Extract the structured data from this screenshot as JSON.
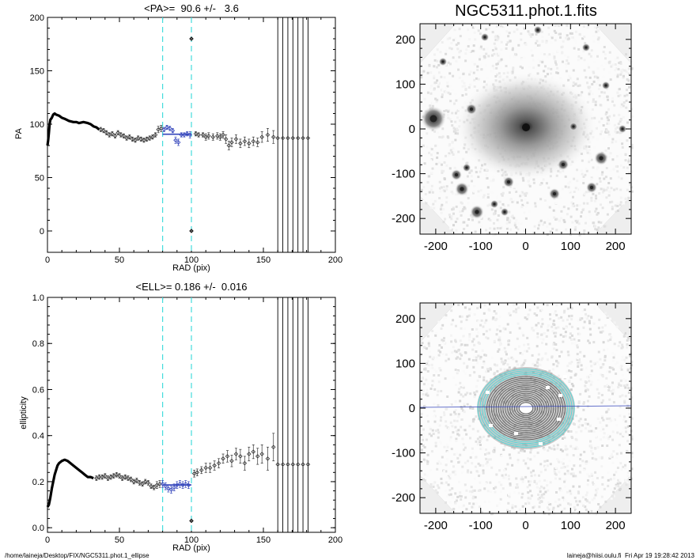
{
  "figure": {
    "title": "NGC5311.phot.1.fits",
    "footer_left": "/home/laineja/Desktop/FIX/NGC5311.phot.1_ellipse",
    "footer_right": "laineja@hiisi.oulu.fi  Fri Apr 19 19:28:42 2013"
  },
  "colors": {
    "axes": "#000000",
    "points": "#333333",
    "dashed_lines": "#44dddd",
    "fit_highlight": "#3344bb",
    "image_background": "#eeeeee"
  },
  "chart_data": [
    {
      "id": "pa",
      "type": "scatter",
      "title": "<PA>=  90.6 +/-   3.6",
      "xlabel": "RAD (pix)",
      "ylabel": "PA",
      "xlim": [
        0,
        200
      ],
      "ylim": [
        -20,
        200
      ],
      "xticks": [
        0,
        50,
        100,
        150,
        200
      ],
      "yticks": [
        0,
        50,
        100,
        150,
        200
      ],
      "mean": 90.6,
      "fit_range": [
        80,
        100
      ],
      "vlines_dashed": [
        80,
        100
      ],
      "vlines_solid": [
        160,
        163.5,
        167,
        170.5,
        174,
        177.5,
        181
      ],
      "outliers": [
        {
          "x": 100,
          "y": 180
        },
        {
          "x": 100,
          "y": 0
        }
      ],
      "curve": [
        [
          0,
          80
        ],
        [
          0.5,
          85
        ],
        [
          1,
          92
        ],
        [
          1.5,
          100
        ],
        [
          2,
          104
        ],
        [
          3,
          106
        ],
        [
          4,
          109
        ],
        [
          5,
          110
        ],
        [
          6,
          109
        ],
        [
          8,
          108
        ],
        [
          10,
          106
        ],
        [
          12,
          105
        ],
        [
          15,
          103
        ],
        [
          18,
          102
        ],
        [
          20,
          102
        ],
        [
          22,
          101
        ],
        [
          25,
          102
        ],
        [
          28,
          101
        ],
        [
          30,
          100
        ],
        [
          32,
          98
        ],
        [
          34,
          97
        ],
        [
          36,
          95
        ]
      ],
      "points": [
        [
          37,
          95,
          2
        ],
        [
          39,
          94,
          2
        ],
        [
          41,
          92,
          2
        ],
        [
          43,
          90,
          2
        ],
        [
          45,
          91,
          2
        ],
        [
          47,
          89,
          2
        ],
        [
          49,
          92,
          2
        ],
        [
          51,
          90,
          2
        ],
        [
          53,
          89,
          2
        ],
        [
          55,
          87,
          2
        ],
        [
          57,
          88,
          2
        ],
        [
          59,
          86,
          2
        ],
        [
          61,
          85,
          2
        ],
        [
          63,
          87,
          2
        ],
        [
          65,
          86,
          2
        ],
        [
          67,
          85,
          2
        ],
        [
          69,
          86,
          2
        ],
        [
          71,
          87,
          2
        ],
        [
          73,
          88,
          2
        ],
        [
          75,
          90,
          2
        ],
        [
          77,
          95,
          3
        ],
        [
          79,
          96,
          3
        ],
        [
          81,
          95,
          2
        ],
        [
          83,
          97,
          2
        ],
        [
          85,
          96,
          2
        ],
        [
          87,
          94,
          2
        ],
        [
          89,
          85,
          3
        ],
        [
          91,
          83,
          3
        ],
        [
          93,
          90,
          2
        ],
        [
          95,
          90,
          2
        ],
        [
          97,
          91,
          2
        ],
        [
          99,
          90,
          3
        ],
        [
          103,
          91,
          2
        ],
        [
          105,
          90,
          2
        ],
        [
          108,
          90,
          2
        ],
        [
          110,
          88,
          3
        ],
        [
          112,
          89,
          3
        ],
        [
          115,
          88,
          3
        ],
        [
          118,
          89,
          3
        ],
        [
          120,
          88,
          3
        ],
        [
          122,
          90,
          3
        ],
        [
          124,
          86,
          4
        ],
        [
          126,
          80,
          4
        ],
        [
          128,
          83,
          4
        ],
        [
          131,
          86,
          4
        ],
        [
          134,
          82,
          4
        ],
        [
          137,
          84,
          4
        ],
        [
          140,
          82,
          4
        ],
        [
          143,
          84,
          4
        ],
        [
          146,
          83,
          4
        ],
        [
          149,
          88,
          5
        ],
        [
          153,
          90,
          6
        ],
        [
          157,
          88,
          6
        ],
        [
          160,
          87,
          0
        ],
        [
          163.5,
          87,
          0
        ],
        [
          167,
          87,
          0
        ],
        [
          170.5,
          87,
          0
        ],
        [
          174,
          87,
          0
        ],
        [
          177.5,
          87,
          0
        ],
        [
          181,
          87,
          0
        ]
      ]
    },
    {
      "id": "ell",
      "type": "scatter",
      "title": "<ELL>= 0.186 +/-  0.016",
      "xlabel": "RAD (pix)",
      "ylabel": "ellipticity",
      "xlim": [
        0,
        200
      ],
      "ylim": [
        -0.02,
        1.0
      ],
      "xticks": [
        0,
        50,
        100,
        150,
        200
      ],
      "yticks": [
        0.0,
        0.2,
        0.4,
        0.6,
        0.8,
        1.0
      ],
      "mean": 0.186,
      "fit_range": [
        80,
        100
      ],
      "vlines_dashed": [
        80,
        100
      ],
      "vlines_solid": [
        160,
        163.5,
        167,
        170.5,
        174,
        177.5,
        181
      ],
      "outliers": [
        {
          "x": 100,
          "y": 0.03
        }
      ],
      "curve": [
        [
          0,
          0.09
        ],
        [
          1,
          0.1
        ],
        [
          2,
          0.13
        ],
        [
          3,
          0.17
        ],
        [
          4,
          0.2
        ],
        [
          5,
          0.23
        ],
        [
          6,
          0.25
        ],
        [
          7,
          0.27
        ],
        [
          8,
          0.28
        ],
        [
          10,
          0.29
        ],
        [
          12,
          0.295
        ],
        [
          14,
          0.29
        ],
        [
          16,
          0.28
        ],
        [
          18,
          0.27
        ],
        [
          20,
          0.26
        ],
        [
          22,
          0.25
        ],
        [
          24,
          0.24
        ],
        [
          26,
          0.23
        ],
        [
          28,
          0.22
        ],
        [
          30,
          0.22
        ],
        [
          32,
          0.215
        ]
      ],
      "points": [
        [
          34,
          0.215,
          0.01
        ],
        [
          36,
          0.22,
          0.01
        ],
        [
          38,
          0.22,
          0.01
        ],
        [
          40,
          0.225,
          0.01
        ],
        [
          42,
          0.215,
          0.01
        ],
        [
          44,
          0.22,
          0.01
        ],
        [
          46,
          0.225,
          0.01
        ],
        [
          48,
          0.23,
          0.01
        ],
        [
          50,
          0.225,
          0.01
        ],
        [
          52,
          0.215,
          0.01
        ],
        [
          54,
          0.22,
          0.01
        ],
        [
          56,
          0.215,
          0.01
        ],
        [
          58,
          0.21,
          0.01
        ],
        [
          60,
          0.2,
          0.01
        ],
        [
          62,
          0.205,
          0.01
        ],
        [
          64,
          0.195,
          0.01
        ],
        [
          66,
          0.19,
          0.01
        ],
        [
          68,
          0.2,
          0.01
        ],
        [
          70,
          0.195,
          0.01
        ],
        [
          72,
          0.18,
          0.01
        ],
        [
          74,
          0.175,
          0.01
        ],
        [
          76,
          0.185,
          0.015
        ],
        [
          78,
          0.19,
          0.015
        ],
        [
          80,
          0.19,
          0.015
        ],
        [
          82,
          0.18,
          0.015
        ],
        [
          84,
          0.17,
          0.015
        ],
        [
          86,
          0.165,
          0.015
        ],
        [
          88,
          0.175,
          0.015
        ],
        [
          90,
          0.185,
          0.015
        ],
        [
          92,
          0.19,
          0.015
        ],
        [
          94,
          0.185,
          0.015
        ],
        [
          96,
          0.19,
          0.015
        ],
        [
          98,
          0.185,
          0.015
        ],
        [
          102,
          0.235,
          0.015
        ],
        [
          104,
          0.24,
          0.015
        ],
        [
          107,
          0.25,
          0.015
        ],
        [
          110,
          0.26,
          0.02
        ],
        [
          113,
          0.26,
          0.02
        ],
        [
          116,
          0.27,
          0.02
        ],
        [
          119,
          0.28,
          0.02
        ],
        [
          122,
          0.3,
          0.02
        ],
        [
          125,
          0.31,
          0.025
        ],
        [
          128,
          0.29,
          0.025
        ],
        [
          131,
          0.32,
          0.025
        ],
        [
          134,
          0.31,
          0.03
        ],
        [
          137,
          0.28,
          0.03
        ],
        [
          140,
          0.32,
          0.03
        ],
        [
          143,
          0.33,
          0.03
        ],
        [
          146,
          0.31,
          0.035
        ],
        [
          149,
          0.32,
          0.04
        ],
        [
          153,
          0.3,
          0.05
        ],
        [
          157,
          0.35,
          0.06
        ],
        [
          160,
          0.275,
          0
        ],
        [
          163.5,
          0.275,
          0
        ],
        [
          167,
          0.275,
          0
        ],
        [
          170.5,
          0.275,
          0
        ],
        [
          174,
          0.275,
          0
        ],
        [
          177.5,
          0.275,
          0
        ],
        [
          181,
          0.275,
          0
        ]
      ]
    },
    {
      "id": "image-top",
      "type": "heatmap",
      "xlim": [
        -235,
        235
      ],
      "ylim": [
        -235,
        235
      ],
      "xticks": [
        -200,
        -100,
        0,
        100,
        200
      ],
      "yticks": [
        -200,
        -100,
        0,
        100,
        200
      ]
    },
    {
      "id": "image-bottom",
      "type": "heatmap",
      "xlim": [
        -235,
        235
      ],
      "ylim": [
        -235,
        235
      ],
      "xticks": [
        -200,
        -100,
        0,
        100,
        200
      ],
      "yticks": [
        -200,
        -100,
        0,
        100,
        200
      ],
      "major_axis_angle_deg": 0
    }
  ]
}
